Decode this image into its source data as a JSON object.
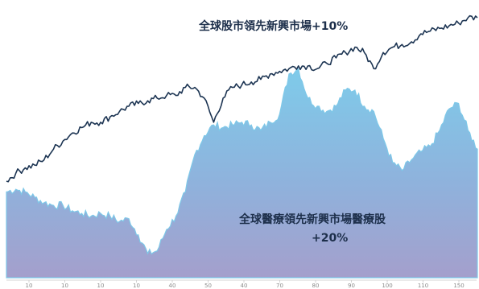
{
  "chart_data": {
    "type": "area",
    "title": "",
    "xlabel": "",
    "ylabel": "",
    "grid": false,
    "legend": "none",
    "x_tick_labels": [
      "10",
      "10",
      "10",
      "10",
      "40",
      "50",
      "40",
      "70",
      "80",
      "90",
      "100",
      "110",
      "150"
    ],
    "ylim": [
      0,
      100
    ],
    "series": [
      {
        "chart": "line",
        "color": "#1d3553",
        "x": [
          0,
          2,
          4,
          6,
          8,
          10,
          12,
          14,
          16,
          18,
          20,
          22,
          24,
          26,
          28,
          30,
          32,
          34,
          36,
          38,
          40,
          42,
          44,
          46,
          48,
          50,
          52,
          54,
          56,
          58,
          60,
          62,
          64,
          66,
          68,
          70,
          72,
          74,
          76,
          78,
          80,
          82,
          84,
          86,
          88,
          90,
          92,
          94,
          96,
          98,
          100
        ],
        "values": [
          36,
          39,
          41,
          42,
          44,
          48,
          51,
          54,
          56,
          58,
          58,
          60,
          62,
          64,
          65,
          66,
          67,
          68,
          68,
          71,
          71,
          67,
          58,
          67,
          71,
          72,
          73,
          74,
          76,
          77,
          78,
          79,
          79,
          78,
          80,
          82,
          84,
          86,
          84,
          78,
          84,
          86,
          87,
          88,
          91,
          92,
          93,
          94,
          95,
          97,
          97
        ]
      },
      {
        "chart": "area",
        "color": "#7ec8e8",
        "x": [
          0,
          2,
          4,
          6,
          8,
          10,
          12,
          14,
          16,
          18,
          20,
          22,
          24,
          26,
          28,
          30,
          32,
          34,
          36,
          38,
          40,
          42,
          44,
          46,
          48,
          50,
          52,
          54,
          56,
          58,
          60,
          62,
          64,
          66,
          68,
          70,
          72,
          74,
          76,
          78,
          80,
          82,
          84,
          86,
          88,
          90,
          92,
          94,
          96,
          98,
          100
        ],
        "values": [
          32,
          33,
          32,
          30,
          28,
          27,
          27,
          25,
          24,
          23,
          24,
          23,
          21,
          22,
          16,
          9,
          10,
          18,
          23,
          32,
          46,
          53,
          57,
          56,
          57,
          58,
          57,
          55,
          58,
          61,
          76,
          78,
          67,
          64,
          62,
          64,
          70,
          70,
          64,
          62,
          52,
          43,
          40,
          44,
          47,
          49,
          55,
          63,
          65,
          55,
          48
        ]
      }
    ],
    "annotations": [
      {
        "text": "全球股市領先新興市場+10%"
      },
      {
        "text": "全球醫療領先新興市場醫療股"
      },
      {
        "text": "+20%"
      }
    ]
  }
}
